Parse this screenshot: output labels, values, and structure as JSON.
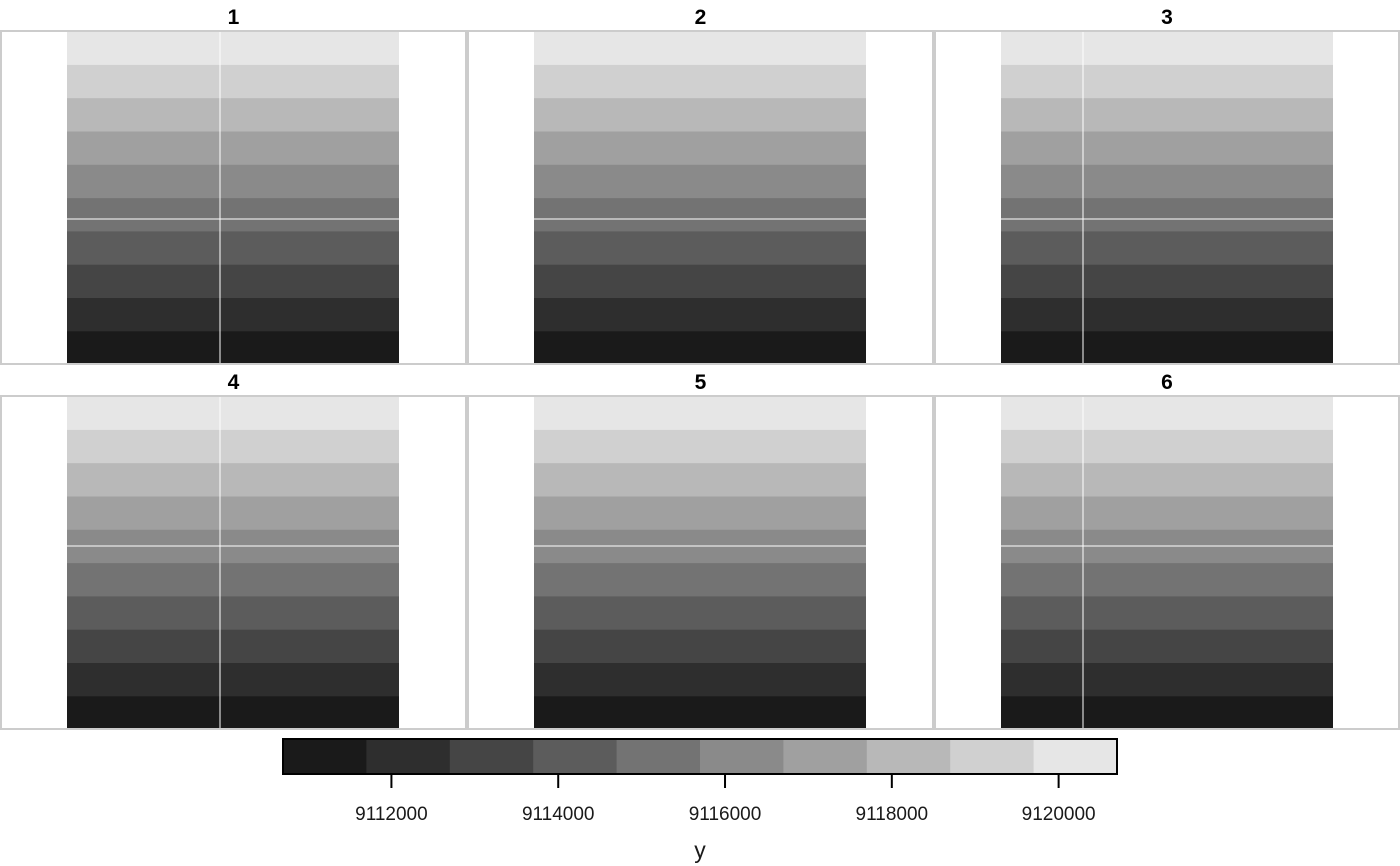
{
  "chart_data": {
    "type": "heatmap",
    "palette_dark_to_light": [
      "#1a1a1a",
      "#2e2e2e",
      "#454545",
      "#5c5c5c",
      "#737373",
      "#8a8a8a",
      "#a0a0a0",
      "#b8b8b8",
      "#d0d0d0",
      "#e6e6e6"
    ],
    "facets": [
      {
        "label": "1",
        "bands_bottom_to_top": [
          1,
          2,
          3,
          4,
          5,
          6,
          7,
          8,
          9,
          10
        ]
      },
      {
        "label": "2",
        "bands_bottom_to_top": [
          1,
          2,
          3,
          4,
          5,
          6,
          7,
          8,
          9,
          10
        ]
      },
      {
        "label": "3",
        "bands_bottom_to_top": [
          1,
          2,
          3,
          4,
          5,
          6,
          7,
          8,
          9,
          10
        ]
      },
      {
        "label": "4",
        "bands_bottom_to_top": [
          1,
          2,
          3,
          4,
          5,
          6,
          7,
          8,
          9,
          10
        ]
      },
      {
        "label": "5",
        "bands_bottom_to_top": [
          1,
          2,
          3,
          4,
          5,
          6,
          7,
          8,
          9,
          10
        ]
      },
      {
        "label": "6",
        "bands_bottom_to_top": [
          1,
          2,
          3,
          4,
          5,
          6,
          7,
          8,
          9,
          10
        ]
      }
    ],
    "legend": {
      "title": "y",
      "range": [
        9110700,
        9120700
      ],
      "ticks": [
        9112000,
        9114000,
        9116000,
        9118000,
        9120000
      ],
      "tick_labels": [
        "9112000",
        "9114000",
        "9116000",
        "9118000",
        "9120000"
      ],
      "position": "bottom"
    },
    "grid": true
  }
}
